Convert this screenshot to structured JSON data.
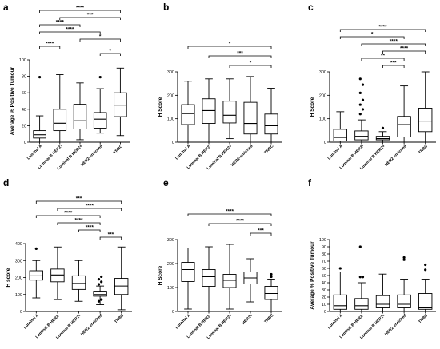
{
  "chart_data": [
    {
      "panel": "a",
      "type": "box",
      "ylabel": "Average % Positive Tumour",
      "ylim": [
        0,
        100
      ],
      "yticks": [
        "0",
        "20",
        "40",
        "60",
        "80",
        "100"
      ],
      "categories": [
        "Luminal A",
        "Luminal B HER2-",
        "Luminal B HER2+",
        "HER2-enriched",
        "TNBC"
      ],
      "boxes": [
        {
          "min": 0,
          "q1": 5,
          "median": 9,
          "q3": 14,
          "max": 32,
          "outliers": [
            79
          ]
        },
        {
          "min": 0,
          "q1": 14,
          "median": 23,
          "q3": 40,
          "max": 82,
          "outliers": []
        },
        {
          "min": 3,
          "q1": 16,
          "median": 26,
          "q3": 46,
          "max": 72,
          "outliers": []
        },
        {
          "min": 11,
          "q1": 17,
          "median": 28,
          "q3": 36,
          "max": 65,
          "outliers": [
            79
          ]
        },
        {
          "min": 8,
          "q1": 31,
          "median": 45,
          "q3": 60,
          "max": 90,
          "outliers": []
        }
      ],
      "significance": [
        {
          "from": 0,
          "to": 4,
          "label": "****"
        },
        {
          "from": 1,
          "to": 4,
          "label": "***"
        },
        {
          "from": 0,
          "to": 2,
          "label": "****"
        },
        {
          "from": 0,
          "to": 3,
          "label": "****"
        },
        {
          "from": 2,
          "to": 4,
          "label": "*"
        },
        {
          "from": 0,
          "to": 1,
          "label": "****"
        },
        {
          "from": 3,
          "to": 4,
          "label": "*"
        }
      ]
    },
    {
      "panel": "b",
      "type": "box",
      "ylabel": "H Score",
      "ylim": [
        0,
        300
      ],
      "yticks": [
        "0",
        "100",
        "200",
        "300"
      ],
      "categories": [
        "Luminal A",
        "Luminal B HER2-",
        "Luminal B HER2+",
        "HER2-enriched",
        "TNBC"
      ],
      "boxes": [
        {
          "min": 0,
          "q1": 75,
          "median": 122,
          "q3": 160,
          "max": 260,
          "outliers": []
        },
        {
          "min": 0,
          "q1": 80,
          "median": 135,
          "q3": 185,
          "max": 270,
          "outliers": []
        },
        {
          "min": 15,
          "q1": 82,
          "median": 115,
          "q3": 175,
          "max": 270,
          "outliers": []
        },
        {
          "min": 0,
          "q1": 35,
          "median": 80,
          "q3": 170,
          "max": 280,
          "outliers": []
        },
        {
          "min": 0,
          "q1": 35,
          "median": 70,
          "q3": 120,
          "max": 230,
          "outliers": []
        }
      ],
      "significance": [
        {
          "from": 0,
          "to": 4,
          "label": "*"
        },
        {
          "from": 1,
          "to": 4,
          "label": "***"
        },
        {
          "from": 2,
          "to": 4,
          "label": "*"
        }
      ]
    },
    {
      "panel": "c",
      "type": "box",
      "ylabel": "H Score",
      "ylim": [
        0,
        300
      ],
      "yticks": [
        "0",
        "100",
        "200",
        "300"
      ],
      "categories": [
        "Luminal A",
        "Luminal B HER2-",
        "Luminal B HER2+",
        "HER2 enriched",
        "TNBC"
      ],
      "boxes": [
        {
          "min": 0,
          "q1": 5,
          "median": 20,
          "q3": 55,
          "max": 130,
          "outliers": []
        },
        {
          "min": 0,
          "q1": 10,
          "median": 25,
          "q3": 48,
          "max": 95,
          "outliers": [
            120,
            140,
            160,
            180,
            210,
            245,
            270
          ]
        },
        {
          "min": 0,
          "q1": 10,
          "median": 15,
          "q3": 25,
          "max": 45,
          "outliers": [
            60
          ]
        },
        {
          "min": 0,
          "q1": 22,
          "median": 75,
          "q3": 110,
          "max": 240,
          "outliers": []
        },
        {
          "min": 0,
          "q1": 45,
          "median": 90,
          "q3": 145,
          "max": 300,
          "outliers": []
        }
      ],
      "significance": [
        {
          "from": 0,
          "to": 4,
          "label": "****"
        },
        {
          "from": 0,
          "to": 3,
          "label": "*"
        },
        {
          "from": 1,
          "to": 4,
          "label": "****"
        },
        {
          "from": 2,
          "to": 4,
          "label": "****"
        },
        {
          "from": 1,
          "to": 3,
          "label": "**"
        },
        {
          "from": 2,
          "to": 3,
          "label": "***"
        }
      ]
    },
    {
      "panel": "d",
      "type": "box",
      "ylabel": "H score",
      "ylim": [
        0,
        400
      ],
      "yticks": [
        "0",
        "100",
        "200",
        "300",
        "400"
      ],
      "categories": [
        "Luminal A",
        "Luminal B HER2-",
        "Luminal B HER2+",
        "HER2-enriched",
        "TNBC"
      ],
      "boxes": [
        {
          "min": 80,
          "q1": 185,
          "median": 210,
          "q3": 240,
          "max": 300,
          "outliers": [
            370
          ]
        },
        {
          "min": 70,
          "q1": 175,
          "median": 215,
          "q3": 250,
          "max": 380,
          "outliers": []
        },
        {
          "min": 60,
          "q1": 130,
          "median": 165,
          "q3": 210,
          "max": 300,
          "outliers": []
        },
        {
          "min": 40,
          "q1": 90,
          "median": 100,
          "q3": 115,
          "max": 150,
          "outliers": [
            60,
            70,
            160,
            175,
            190,
            205
          ]
        },
        {
          "min": 10,
          "q1": 100,
          "median": 150,
          "q3": 195,
          "max": 380,
          "outliers": []
        }
      ],
      "significance": [
        {
          "from": 0,
          "to": 4,
          "label": "***"
        },
        {
          "from": 1,
          "to": 4,
          "label": "****"
        },
        {
          "from": 0,
          "to": 3,
          "label": "****"
        },
        {
          "from": 1,
          "to": 3,
          "label": "****"
        },
        {
          "from": 2,
          "to": 3,
          "label": "****"
        },
        {
          "from": 3,
          "to": 4,
          "label": "***"
        }
      ]
    },
    {
      "panel": "e",
      "type": "box",
      "ylabel": "H Score",
      "ylim": [
        0,
        300
      ],
      "yticks": [
        "0",
        "100",
        "200",
        "300"
      ],
      "categories": [
        "Luminal A",
        "Luminal B HER2-",
        "Luminal B HER2+",
        "HER2+",
        "TNBC"
      ],
      "boxes": [
        {
          "min": 10,
          "q1": 125,
          "median": 175,
          "q3": 205,
          "max": 265,
          "outliers": []
        },
        {
          "min": 0,
          "q1": 105,
          "median": 145,
          "q3": 175,
          "max": 270,
          "outliers": []
        },
        {
          "min": 10,
          "q1": 100,
          "median": 130,
          "q3": 155,
          "max": 280,
          "outliers": []
        },
        {
          "min": 40,
          "q1": 115,
          "median": 140,
          "q3": 165,
          "max": 220,
          "outliers": []
        },
        {
          "min": 0,
          "q1": 50,
          "median": 75,
          "q3": 105,
          "max": 135,
          "outliers": [
            145,
            155
          ]
        }
      ],
      "significance": [
        {
          "from": 0,
          "to": 4,
          "label": "****"
        },
        {
          "from": 1,
          "to": 4,
          "label": "****"
        },
        {
          "from": 3,
          "to": 4,
          "label": "***"
        }
      ]
    },
    {
      "panel": "f",
      "type": "box",
      "ylabel": "Average % Positive Tumour",
      "ylim": [
        0,
        100
      ],
      "yticks": [
        "0",
        "10",
        "20",
        "30",
        "40",
        "50",
        "60",
        "70",
        "80",
        "90",
        "100"
      ],
      "categories": [
        "Luminal A",
        "Luminal B HER2-",
        "Luminal B HER2+",
        "HER2-enriched",
        "TNBC"
      ],
      "boxes": [
        {
          "min": 0,
          "q1": 3,
          "median": 8,
          "q3": 23,
          "max": 55,
          "outliers": [
            60
          ]
        },
        {
          "min": 0,
          "q1": 3,
          "median": 8,
          "q3": 18,
          "max": 40,
          "outliers": [
            48,
            48,
            90
          ]
        },
        {
          "min": 0,
          "q1": 5,
          "median": 10,
          "q3": 22,
          "max": 52,
          "outliers": []
        },
        {
          "min": 0,
          "q1": 5,
          "median": 10,
          "q3": 23,
          "max": 45,
          "outliers": [
            72,
            75
          ]
        },
        {
          "min": 0,
          "q1": 3,
          "median": 5,
          "q3": 25,
          "max": 45,
          "outliers": [
            58,
            65
          ]
        }
      ],
      "significance": []
    }
  ]
}
